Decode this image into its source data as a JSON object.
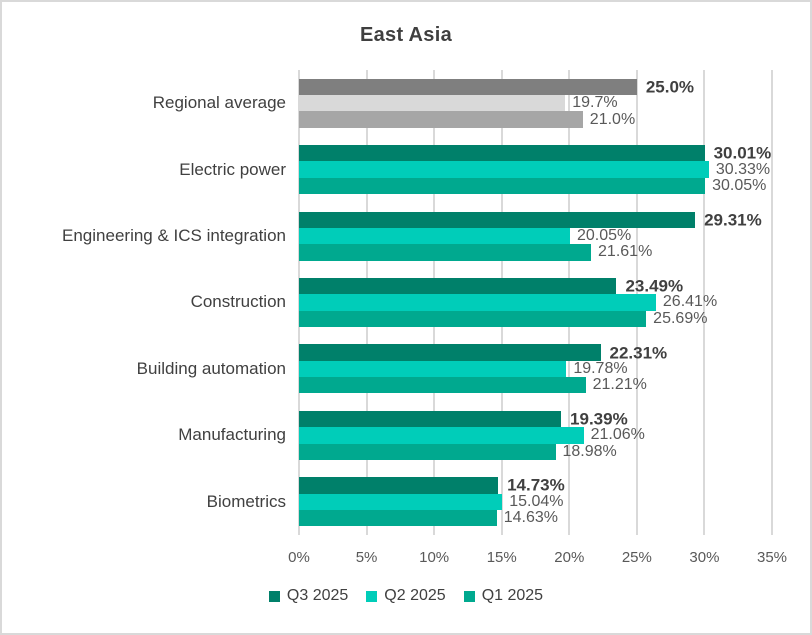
{
  "title": "East Asia",
  "chart_data": {
    "type": "bar",
    "orientation": "horizontal",
    "title": "East Asia",
    "xlabel": "",
    "ylabel": "",
    "xlim": [
      0,
      35
    ],
    "x_tick_labels": [
      "0%",
      "5%",
      "10%",
      "15%",
      "20%",
      "25%",
      "30%",
      "35%"
    ],
    "grid": true,
    "legend_position": "bottom",
    "categories": [
      "Regional average",
      "Electric power",
      "Engineering & ICS integration",
      "Construction",
      "Building automation",
      "Manufacturing",
      "Biometrics"
    ],
    "series": [
      {
        "name": "Q3 2025",
        "color": "#00806A",
        "regional_average_color": "#7F7F7F",
        "values": [
          25.0,
          30.01,
          29.31,
          23.49,
          22.31,
          19.39,
          14.73
        ],
        "data_labels": [
          "25.0%",
          "30.01%",
          "29.31%",
          "23.49%",
          "22.31%",
          "19.39%",
          "14.73%"
        ]
      },
      {
        "name": "Q2 2025",
        "color": "#00CDB9",
        "regional_average_color": "#D9D9D9",
        "values": [
          19.7,
          30.33,
          20.05,
          26.41,
          19.78,
          21.06,
          15.04
        ],
        "data_labels": [
          "19.7%",
          "30.33%",
          "20.05%",
          "26.41%",
          "19.78%",
          "21.06%",
          "15.04%"
        ]
      },
      {
        "name": "Q1 2025",
        "color": "#00A98F",
        "regional_average_color": "#A6A6A6",
        "values": [
          21.0,
          30.05,
          21.61,
          25.69,
          21.21,
          18.98,
          14.63
        ],
        "data_labels": [
          "21.0%",
          "30.05%",
          "21.61%",
          "25.69%",
          "21.21%",
          "18.98%",
          "14.63%"
        ]
      }
    ],
    "colors": {
      "gridline": "#D9D9D9",
      "title_text": "#3F3F3F",
      "category_text": "#404040",
      "primary_label_text": "#404040",
      "secondary_label_text": "#595959",
      "tick_text": "#595959"
    }
  }
}
